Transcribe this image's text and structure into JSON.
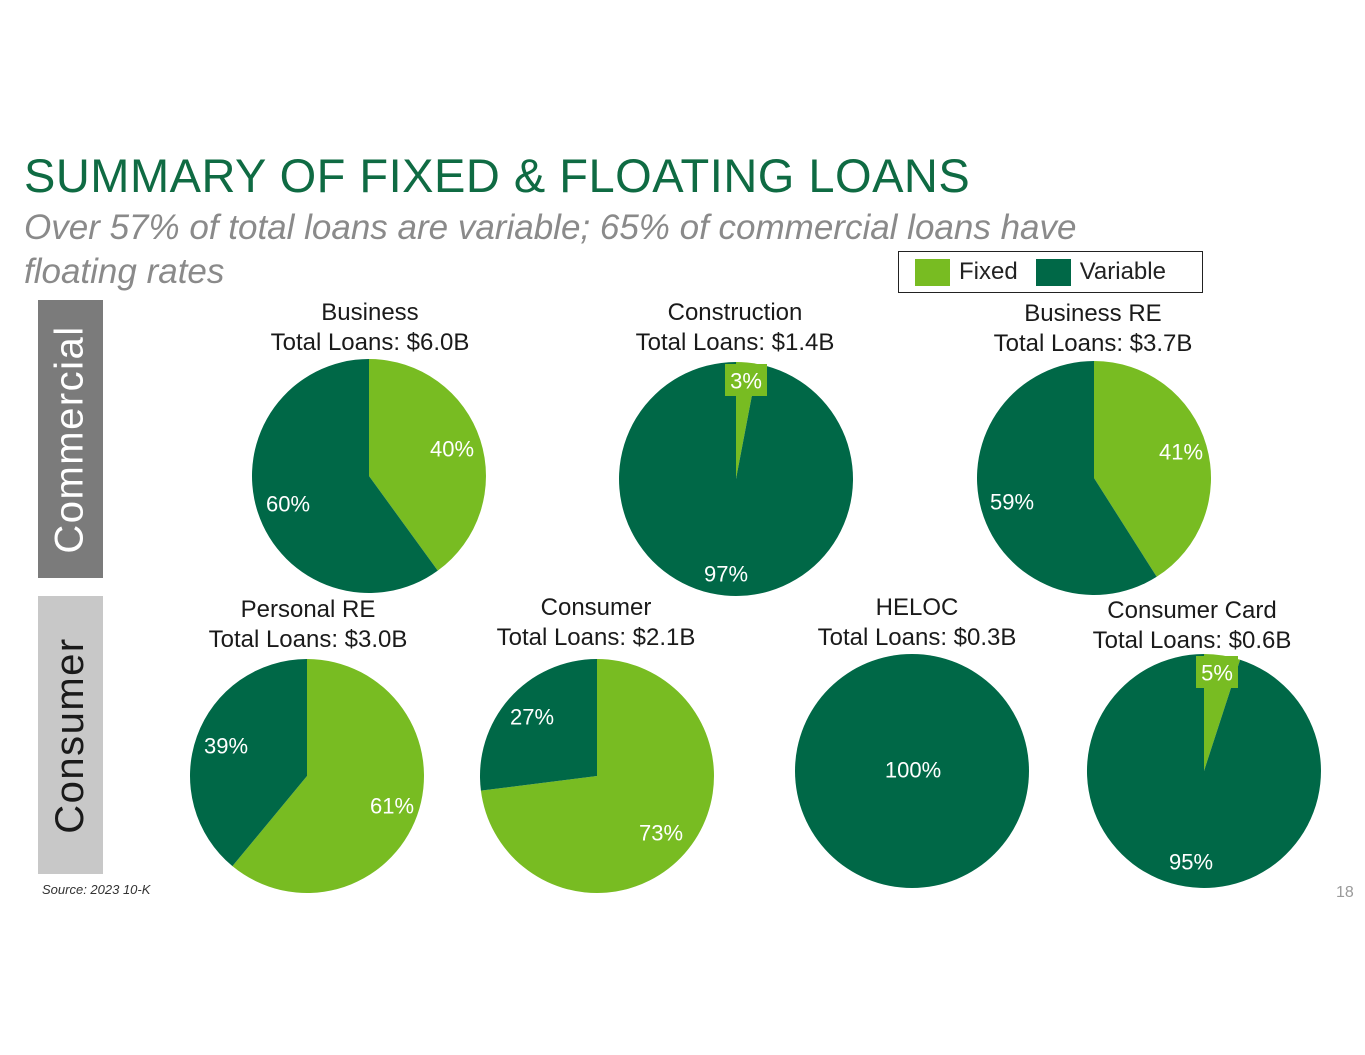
{
  "title": "SUMMARY OF FIXED & FLOATING LOANS",
  "subtitle": "Over 57% of total loans are variable; 65% of commercial loans have floating rates",
  "side_labels": {
    "commercial": "Commercial",
    "consumer": "Consumer"
  },
  "legend": {
    "fixed": {
      "label": "Fixed",
      "color": "#78bc22"
    },
    "variable": {
      "label": "Variable",
      "color": "#006847"
    }
  },
  "source": "Source: 2023 10-K",
  "page_number": "18",
  "chart_data": [
    {
      "type": "pie",
      "group": "Commercial",
      "title": "Business",
      "subtitle": "Total Loans: $6.0B",
      "slices": [
        {
          "name": "Fixed",
          "value": 40,
          "label": "40%"
        },
        {
          "name": "Variable",
          "value": 60,
          "label": "60%"
        }
      ]
    },
    {
      "type": "pie",
      "group": "Commercial",
      "title": "Construction",
      "subtitle": "Total Loans: $1.4B",
      "slices": [
        {
          "name": "Fixed",
          "value": 3,
          "label": "3%"
        },
        {
          "name": "Variable",
          "value": 97,
          "label": "97%"
        }
      ]
    },
    {
      "type": "pie",
      "group": "Commercial",
      "title": "Business RE",
      "subtitle": "Total Loans: $3.7B",
      "slices": [
        {
          "name": "Fixed",
          "value": 41,
          "label": "41%"
        },
        {
          "name": "Variable",
          "value": 59,
          "label": "59%"
        }
      ]
    },
    {
      "type": "pie",
      "group": "Consumer",
      "title": "Personal RE",
      "subtitle": "Total Loans: $3.0B",
      "slices": [
        {
          "name": "Fixed",
          "value": 61,
          "label": "61%"
        },
        {
          "name": "Variable",
          "value": 39,
          "label": "39%"
        }
      ]
    },
    {
      "type": "pie",
      "group": "Consumer",
      "title": "Consumer",
      "subtitle": "Total Loans: $2.1B",
      "slices": [
        {
          "name": "Fixed",
          "value": 73,
          "label": "73%"
        },
        {
          "name": "Variable",
          "value": 27,
          "label": "27%"
        }
      ]
    },
    {
      "type": "pie",
      "group": "Consumer",
      "title": "HELOC",
      "subtitle": "Total Loans: $0.3B",
      "slices": [
        {
          "name": "Fixed",
          "value": 0,
          "label": ""
        },
        {
          "name": "Variable",
          "value": 100,
          "label": "100%"
        }
      ]
    },
    {
      "type": "pie",
      "group": "Consumer",
      "title": "Consumer Card",
      "subtitle": "Total Loans: $0.6B",
      "slices": [
        {
          "name": "Fixed",
          "value": 5,
          "label": "5%"
        },
        {
          "name": "Variable",
          "value": 95,
          "label": "95%"
        }
      ]
    }
  ]
}
